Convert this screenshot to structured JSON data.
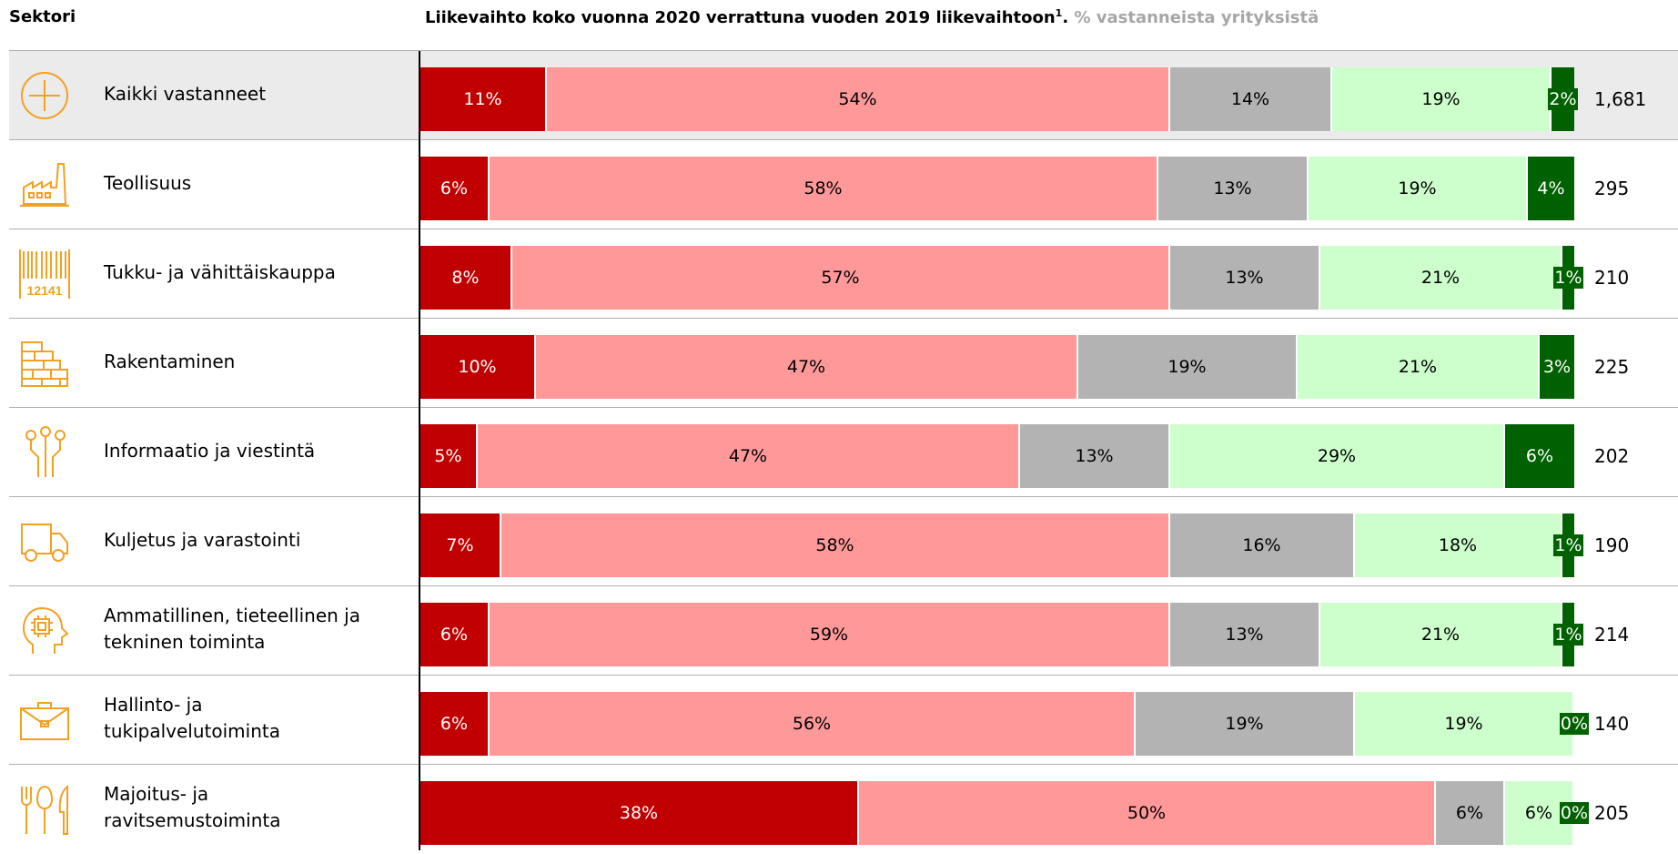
{
  "header": {
    "sector_label": "Sektori",
    "title_main": "Liikevaihto koko vuonna 2020 verrattuna vuoden 2019 liikevaihtoon",
    "title_sup": "1",
    "title_dot": ".",
    "title_sub": "% vastanneista yrityksistä"
  },
  "colors": {
    "cat1": "#c00000",
    "cat2": "#ff9999",
    "cat3": "#b3b3b3",
    "cat4": "#ccffcc",
    "cat5": "#006100",
    "icon": "#f4a020",
    "highlight_row": "#ebebeb"
  },
  "chart_data": {
    "type": "bar",
    "orientation": "horizontal",
    "stacked": true,
    "title": "Liikevaihto koko vuonna 2020 verrattuna vuoden 2019 liikevaihtoon¹. % vastanneista yrityksistä",
    "categories": [
      "Kaikki vastanneet",
      "Teollisuus",
      "Tukku- ja vähittäiskauppa",
      "Rakentaminen",
      "Informaatio ja viestintä",
      "Kuljetus ja varastointi",
      "Ammatillinen, tieteellinen ja tekninen toiminta",
      "Hallinto- ja tukipalvelutoiminta",
      "Majoitus- ja ravitsemustoiminta"
    ],
    "series": [
      {
        "values": [
          11,
          6,
          8,
          10,
          5,
          7,
          6,
          6,
          38
        ]
      },
      {
        "values": [
          54,
          58,
          57,
          47,
          47,
          58,
          59,
          56,
          50
        ]
      },
      {
        "values": [
          14,
          13,
          13,
          19,
          13,
          16,
          13,
          19,
          6
        ]
      },
      {
        "values": [
          19,
          19,
          21,
          21,
          29,
          18,
          21,
          19,
          6
        ]
      },
      {
        "values": [
          2,
          4,
          1,
          3,
          6,
          1,
          1,
          0,
          0
        ]
      }
    ],
    "n": [
      1681,
      295,
      210,
      225,
      202,
      190,
      214,
      140,
      205
    ],
    "n_labels": [
      "1,681",
      "295",
      "210",
      "225",
      "202",
      "190",
      "214",
      "140",
      "205"
    ],
    "value_labels": [
      [
        "11%",
        "54%",
        "14%",
        "19%",
        "2%"
      ],
      [
        "6%",
        "58%",
        "13%",
        "19%",
        "4%"
      ],
      [
        "8%",
        "57%",
        "13%",
        "21%",
        "1%"
      ],
      [
        "10%",
        "47%",
        "19%",
        "21%",
        "3%"
      ],
      [
        "5%",
        "47%",
        "13%",
        "29%",
        "6%"
      ],
      [
        "7%",
        "58%",
        "16%",
        "18%",
        "1%"
      ],
      [
        "6%",
        "59%",
        "13%",
        "21%",
        "1%"
      ],
      [
        "6%",
        "56%",
        "19%",
        "19%",
        "0%"
      ],
      [
        "38%",
        "50%",
        "6%",
        "6%",
        "0%"
      ]
    ],
    "label_lines": [
      [
        "Kaikki vastanneet"
      ],
      [
        "Teollisuus"
      ],
      [
        "Tukku- ja vähittäiskauppa"
      ],
      [
        "Rakentaminen"
      ],
      [
        "Informaatio ja viestintä"
      ],
      [
        "Kuljetus ja varastointi"
      ],
      [
        "Ammatillinen, tieteellinen ja",
        "tekninen toiminta"
      ],
      [
        "Hallinto- ja",
        "tukipalvelutoiminta"
      ],
      [
        "Majoitus- ja",
        "ravitsemustoiminta"
      ]
    ],
    "icons": [
      "circle-plus-icon",
      "factory-icon",
      "barcode-icon",
      "brick-wall-icon",
      "circuit-icon",
      "delivery-truck-icon",
      "head-chip-icon",
      "briefcase-icon",
      "cutlery-icon"
    ]
  }
}
